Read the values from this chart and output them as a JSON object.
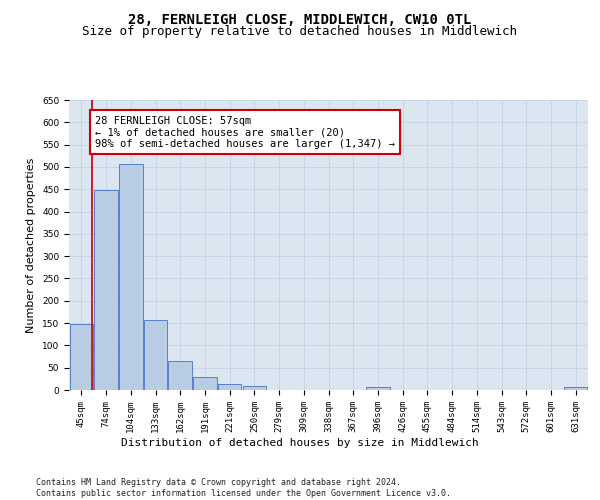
{
  "title": "28, FERNLEIGH CLOSE, MIDDLEWICH, CW10 0TL",
  "subtitle": "Size of property relative to detached houses in Middlewich",
  "xlabel": "Distribution of detached houses by size in Middlewich",
  "ylabel": "Number of detached properties",
  "categories": [
    "45sqm",
    "74sqm",
    "104sqm",
    "133sqm",
    "162sqm",
    "191sqm",
    "221sqm",
    "250sqm",
    "279sqm",
    "309sqm",
    "338sqm",
    "367sqm",
    "396sqm",
    "426sqm",
    "455sqm",
    "484sqm",
    "514sqm",
    "543sqm",
    "572sqm",
    "601sqm",
    "631sqm"
  ],
  "values": [
    147,
    449,
    507,
    157,
    66,
    30,
    14,
    8,
    0,
    0,
    0,
    0,
    7,
    0,
    0,
    0,
    0,
    0,
    0,
    0,
    6
  ],
  "bar_color": "#b8cce4",
  "bar_edge_color": "#4472c4",
  "grid_color": "#c8d4e8",
  "background_color": "#dce6f1",
  "annotation_line1": "28 FERNLEIGH CLOSE: 57sqm",
  "annotation_line2": "← 1% of detached houses are smaller (20)",
  "annotation_line3": "98% of semi-detached houses are larger (1,347) →",
  "annotation_box_color": "#ffffff",
  "annotation_box_edge_color": "#cc0000",
  "red_line_x": 0.42,
  "ylim": [
    0,
    650
  ],
  "yticks": [
    0,
    50,
    100,
    150,
    200,
    250,
    300,
    350,
    400,
    450,
    500,
    550,
    600,
    650
  ],
  "footer": "Contains HM Land Registry data © Crown copyright and database right 2024.\nContains public sector information licensed under the Open Government Licence v3.0.",
  "title_fontsize": 10,
  "subtitle_fontsize": 9,
  "xlabel_fontsize": 8,
  "ylabel_fontsize": 8,
  "tick_fontsize": 6.5,
  "annotation_fontsize": 7.5,
  "footer_fontsize": 6
}
